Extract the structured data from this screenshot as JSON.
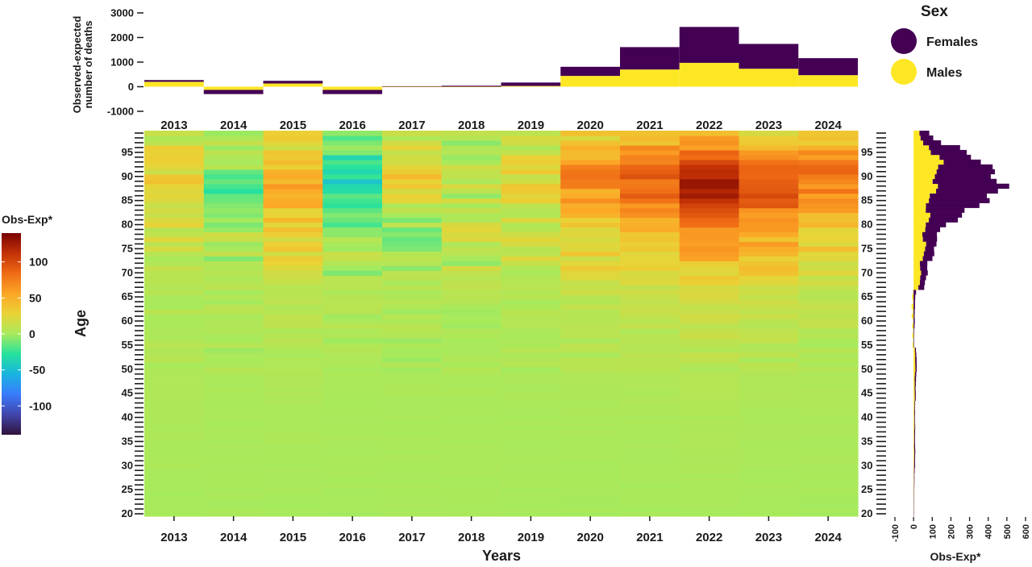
{
  "colors": {
    "females": "#440154",
    "males": "#FDE725",
    "background": "#ffffff",
    "text": "#1a1a1a"
  },
  "chart_data": [
    {
      "id": "top_bar",
      "type": "bar",
      "stacked": true,
      "categories": [
        "2013",
        "2014",
        "2015",
        "2016",
        "2017",
        "2018",
        "2019",
        "2020",
        "2021",
        "2022",
        "2023",
        "2024"
      ],
      "series": [
        {
          "name": "Males",
          "values": [
            200,
            -130,
            130,
            -130,
            -10,
            -10,
            30,
            440,
            700,
            970,
            730,
            470
          ]
        },
        {
          "name": "Females",
          "values": [
            70,
            -170,
            110,
            -170,
            20,
            40,
            140,
            370,
            910,
            1460,
            1010,
            690
          ]
        }
      ],
      "ylabel": "Observed-expected number of deaths",
      "ylim": [
        -1000,
        3000
      ],
      "yticks": [
        -1000,
        0,
        1000,
        2000,
        3000
      ],
      "legend": {
        "title": "Sex",
        "entries": [
          "Females",
          "Males"
        ],
        "position": "top-right"
      }
    },
    {
      "id": "heatmap",
      "type": "heatmap",
      "x": [
        "2013",
        "2014",
        "2015",
        "2016",
        "2017",
        "2018",
        "2019",
        "2020",
        "2021",
        "2022",
        "2023",
        "2024"
      ],
      "xlabel": "Years",
      "ylabel": "Age",
      "y_range": [
        20,
        99
      ],
      "yticks": [
        20,
        25,
        30,
        35,
        40,
        45,
        50,
        55,
        60,
        65,
        70,
        75,
        80,
        85,
        90,
        95
      ],
      "profile_ages": [
        20,
        30,
        40,
        50,
        55,
        60,
        65,
        68,
        70,
        72,
        75,
        78,
        80,
        82,
        84,
        86,
        88,
        90,
        92,
        95,
        97,
        99
      ],
      "profile_by_year": [
        [
          0,
          1,
          2,
          4,
          4,
          5,
          5,
          8,
          10,
          13,
          17,
          19,
          21,
          25,
          24,
          26,
          28,
          26,
          24,
          22,
          18,
          14
        ],
        [
          0,
          1,
          1,
          2,
          2,
          3,
          3,
          5,
          4,
          6,
          5,
          4,
          2,
          -5,
          -15,
          -18,
          -20,
          -12,
          -5,
          0,
          3,
          4
        ],
        [
          0,
          1,
          2,
          4,
          4,
          6,
          6,
          10,
          14,
          20,
          25,
          28,
          32,
          37,
          42,
          47,
          50,
          45,
          40,
          33,
          26,
          18
        ],
        [
          0,
          1,
          1,
          2,
          2,
          3,
          3,
          5,
          4,
          4,
          1,
          -3,
          -8,
          -16,
          -22,
          -28,
          -33,
          -36,
          -30,
          -20,
          -12,
          -5
        ],
        [
          0,
          1,
          1,
          2,
          2,
          3,
          3,
          4,
          5,
          3,
          -2,
          -8,
          0,
          7,
          13,
          20,
          28,
          34,
          30,
          24,
          18,
          12
        ],
        [
          0,
          1,
          1,
          2,
          2,
          3,
          4,
          6,
          7,
          9,
          10,
          11,
          12,
          10,
          8,
          7,
          10,
          13,
          10,
          6,
          2,
          0
        ],
        [
          0,
          1,
          1,
          2,
          2,
          4,
          4,
          6,
          8,
          11,
          14,
          17,
          16,
          18,
          20,
          22,
          24,
          22,
          20,
          16,
          12,
          8
        ],
        [
          0,
          1,
          2,
          4,
          5,
          7,
          10,
          15,
          20,
          24,
          29,
          34,
          38,
          45,
          52,
          58,
          62,
          68,
          62,
          53,
          40,
          28
        ],
        [
          0,
          1,
          2,
          4,
          6,
          9,
          12,
          18,
          24,
          32,
          40,
          48,
          54,
          62,
          72,
          80,
          88,
          86,
          75,
          64,
          50,
          36
        ],
        [
          1,
          2,
          3,
          6,
          9,
          13,
          18,
          26,
          34,
          44,
          56,
          68,
          78,
          90,
          105,
          115,
          125,
          122,
          105,
          82,
          62,
          44
        ],
        [
          0,
          1,
          2,
          4,
          7,
          10,
          14,
          20,
          27,
          34,
          44,
          54,
          62,
          72,
          82,
          90,
          92,
          90,
          78,
          62,
          46,
          32
        ],
        [
          0,
          1,
          2,
          3,
          5,
          7,
          9,
          14,
          18,
          22,
          28,
          33,
          37,
          44,
          52,
          60,
          72,
          88,
          82,
          62,
          44,
          30
        ]
      ],
      "colorbar": {
        "title": "Obs-Exp*",
        "range": [
          -140,
          140
        ],
        "ticks": [
          -100,
          -50,
          0,
          50,
          100
        ]
      }
    },
    {
      "id": "right_bar",
      "type": "bar",
      "orientation": "horizontal",
      "stacked": true,
      "xlabel": "Obs-Exp*",
      "xlim": [
        -100,
        600
      ],
      "xticks": [
        -100,
        0,
        100,
        200,
        300,
        400,
        500,
        600
      ],
      "ylim": [
        20,
        99
      ],
      "yticks": [
        20,
        25,
        30,
        35,
        40,
        45,
        50,
        55,
        60,
        65,
        70,
        75,
        80,
        85,
        90,
        95
      ],
      "profile_ages": [
        20,
        30,
        40,
        50,
        55,
        58,
        60,
        62,
        65,
        66,
        67,
        68,
        70,
        72,
        75,
        78,
        80,
        82,
        84,
        86,
        88,
        90,
        92,
        94,
        96,
        97,
        98,
        99
      ],
      "males_profile": [
        0,
        3,
        4,
        8,
        10,
        12,
        15,
        18,
        15,
        20,
        25,
        30,
        35,
        45,
        55,
        60,
        65,
        75,
        80,
        90,
        110,
        130,
        140,
        120,
        90,
        60,
        40,
        25
      ],
      "females_profile": [
        0,
        4,
        4,
        6,
        6,
        10,
        20,
        15,
        20,
        25,
        25,
        25,
        30,
        50,
        70,
        85,
        100,
        150,
        220,
        300,
        350,
        420,
        330,
        220,
        160,
        100,
        60,
        40
      ],
      "series_names": [
        "Males",
        "Females"
      ]
    }
  ]
}
